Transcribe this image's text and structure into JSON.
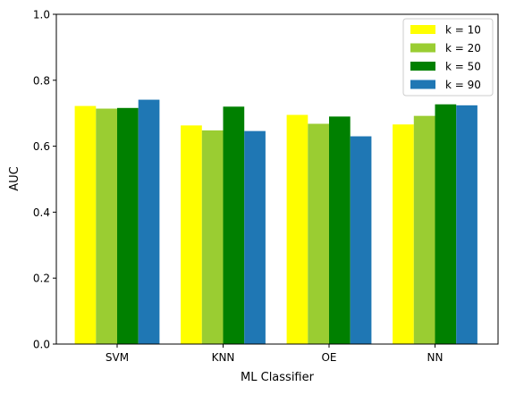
{
  "chart_data": {
    "type": "bar",
    "title": "",
    "xlabel": "ML Classifier",
    "ylabel": "AUC",
    "categories": [
      "SVM",
      "KNN",
      "OE",
      "NN"
    ],
    "ylim": [
      0,
      1.0
    ],
    "yticks": [
      "0.0",
      "0.2",
      "0.4",
      "0.6",
      "0.8",
      "1.0"
    ],
    "grid": false,
    "legend_position": "top-right",
    "series": [
      {
        "name": "k = 10",
        "color": "#ffff00",
        "values": [
          0.722,
          0.663,
          0.695,
          0.666
        ]
      },
      {
        "name": "k = 20",
        "color": "#9acd32",
        "values": [
          0.714,
          0.648,
          0.668,
          0.692
        ]
      },
      {
        "name": "k = 50",
        "color": "#008000",
        "values": [
          0.716,
          0.72,
          0.69,
          0.727
        ]
      },
      {
        "name": "k = 90",
        "color": "#1f77b4",
        "values": [
          0.741,
          0.646,
          0.63,
          0.724
        ]
      }
    ]
  }
}
